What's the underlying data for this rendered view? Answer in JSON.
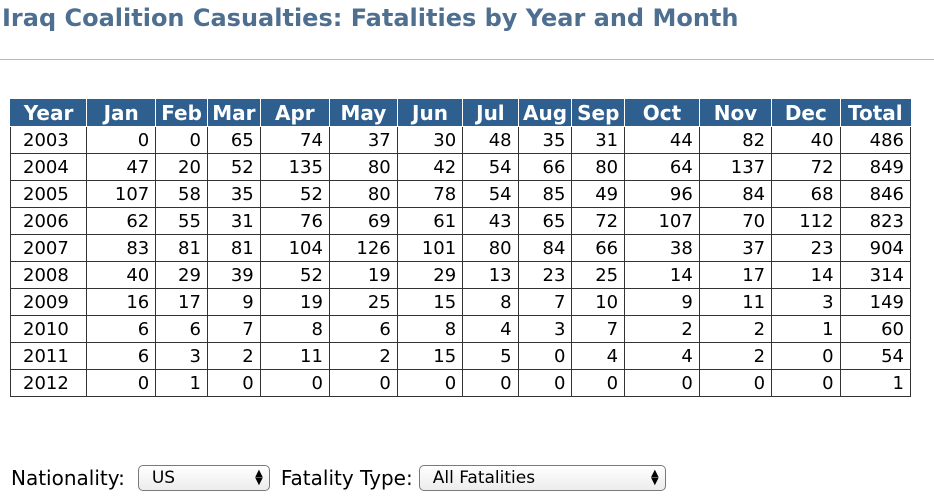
{
  "page": {
    "title": "Iraq Coalition Casualties: Fatalities by Year and Month"
  },
  "table": {
    "headers": [
      "Year",
      "Jan",
      "Feb",
      "Mar",
      "Apr",
      "May",
      "Jun",
      "Jul",
      "Aug",
      "Sep",
      "Oct",
      "Nov",
      "Dec",
      "Total"
    ],
    "rows": [
      [
        "2003",
        "0",
        "0",
        "65",
        "74",
        "37",
        "30",
        "48",
        "35",
        "31",
        "44",
        "82",
        "40",
        "486"
      ],
      [
        "2004",
        "47",
        "20",
        "52",
        "135",
        "80",
        "42",
        "54",
        "66",
        "80",
        "64",
        "137",
        "72",
        "849"
      ],
      [
        "2005",
        "107",
        "58",
        "35",
        "52",
        "80",
        "78",
        "54",
        "85",
        "49",
        "96",
        "84",
        "68",
        "846"
      ],
      [
        "2006",
        "62",
        "55",
        "31",
        "76",
        "69",
        "61",
        "43",
        "65",
        "72",
        "107",
        "70",
        "112",
        "823"
      ],
      [
        "2007",
        "83",
        "81",
        "81",
        "104",
        "126",
        "101",
        "80",
        "84",
        "66",
        "38",
        "37",
        "23",
        "904"
      ],
      [
        "2008",
        "40",
        "29",
        "39",
        "52",
        "19",
        "29",
        "13",
        "23",
        "25",
        "14",
        "17",
        "14",
        "314"
      ],
      [
        "2009",
        "16",
        "17",
        "9",
        "19",
        "25",
        "15",
        "8",
        "7",
        "10",
        "9",
        "11",
        "3",
        "149"
      ],
      [
        "2010",
        "6",
        "6",
        "7",
        "8",
        "6",
        "8",
        "4",
        "3",
        "7",
        "2",
        "2",
        "1",
        "60"
      ],
      [
        "2011",
        "6",
        "3",
        "2",
        "11",
        "2",
        "15",
        "5",
        "0",
        "4",
        "4",
        "2",
        "0",
        "54"
      ],
      [
        "2012",
        "0",
        "1",
        "0",
        "0",
        "0",
        "0",
        "0",
        "0",
        "0",
        "0",
        "0",
        "0",
        "1"
      ]
    ]
  },
  "filters": {
    "nationality_label": "Nationality:",
    "nationality_value": "US",
    "fatality_type_label": "Fatality Type:",
    "fatality_type_value": "All Fatalities",
    "select_arrow_icon": "updown-arrows-icon"
  }
}
